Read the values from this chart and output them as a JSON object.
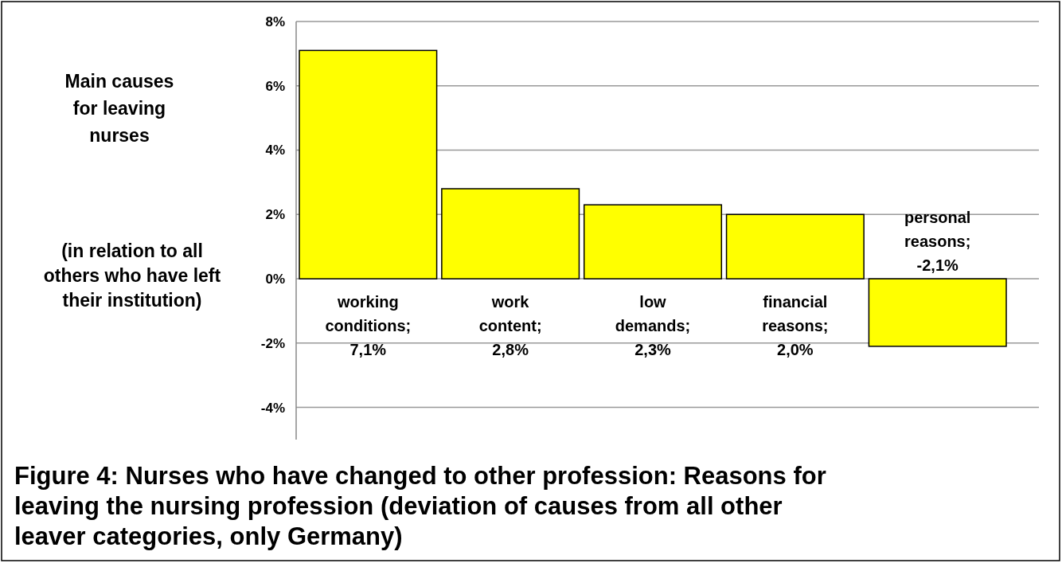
{
  "chart_data": {
    "type": "bar",
    "title": "Figure 4: Nurses who have changed to other profession: Reasons for leaving the nursing profession (deviation of causes from all other leaver categories, only Germany)",
    "ylabel": "Main causes for leaving nurses",
    "annotations": [
      "(in relation to all others who have left their institution)"
    ],
    "categories": [
      "working conditions; 7,1%",
      "work content; 2,8%",
      "low demands; 2,3%",
      "financial reasons; 2,0%",
      "personal reasons; -2,1%"
    ],
    "values": [
      7.1,
      2.8,
      2.3,
      2.0,
      -2.1
    ],
    "color": "#ffff00",
    "ylim": [
      -5,
      8
    ],
    "yticks": [
      {
        "value": -4,
        "label": "-4%"
      },
      {
        "value": -2,
        "label": "-2%"
      },
      {
        "value": 0,
        "label": "0%"
      },
      {
        "value": 2,
        "label": "2%"
      },
      {
        "value": 4,
        "label": "4%"
      },
      {
        "value": 6,
        "label": "6%"
      },
      {
        "value": 8,
        "label": "8%"
      }
    ],
    "grid": "y"
  }
}
